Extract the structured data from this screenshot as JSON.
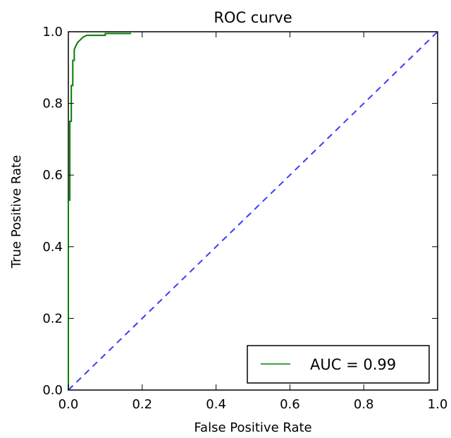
{
  "chart_data": {
    "type": "line",
    "title": "ROC curve",
    "xlabel": "False Positive Rate",
    "ylabel": "True Positive Rate",
    "xlim": [
      0.0,
      1.0
    ],
    "ylim": [
      0.0,
      1.0
    ],
    "x_ticks": [
      "0.0",
      "0.2",
      "0.4",
      "0.6",
      "0.8",
      "1.0"
    ],
    "y_ticks": [
      "0.0",
      "0.2",
      "0.4",
      "0.6",
      "0.8",
      "1.0"
    ],
    "grid": false,
    "legend_position": "lower-right",
    "series": [
      {
        "name": "AUC = 0.99",
        "color": "#008000",
        "style": "solid",
        "x": [
          0.0,
          0.0,
          0.004,
          0.004,
          0.008,
          0.008,
          0.012,
          0.012,
          0.016,
          0.016,
          0.02,
          0.025,
          0.03,
          0.035,
          0.04,
          0.05,
          0.07,
          0.1,
          0.1,
          0.17
        ],
        "y": [
          0.0,
          0.53,
          0.53,
          0.75,
          0.75,
          0.85,
          0.85,
          0.92,
          0.92,
          0.95,
          0.96,
          0.97,
          0.975,
          0.98,
          0.985,
          0.99,
          0.99,
          0.99,
          0.995,
          0.995
        ]
      },
      {
        "color": "#3b3bff",
        "style": "dashed",
        "x": [
          0.0,
          1.0
        ],
        "y": [
          0.0,
          1.0
        ]
      }
    ]
  }
}
